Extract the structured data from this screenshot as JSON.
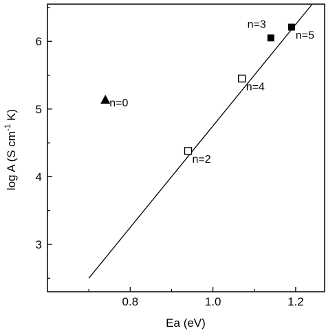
{
  "chart_data": {
    "type": "scatter",
    "title": "",
    "xlabel": "Ea (eV)",
    "ylabel": "log A (S cm⁻¹ K)",
    "ylabel_parts": {
      "pre": "log A (S cm",
      "sup": "-1",
      "post": " K)"
    },
    "xlim": [
      0.6,
      1.27
    ],
    "ylim": [
      2.3,
      6.55
    ],
    "x_ticks": [
      0.8,
      1.0,
      1.2
    ],
    "x_tick_labels": [
      "0.8",
      "1.0",
      "1.2"
    ],
    "y_ticks": [
      3,
      4,
      5,
      6
    ],
    "y_tick_labels": [
      "3",
      "4",
      "5",
      "6"
    ],
    "grid": false,
    "points": [
      {
        "label": "n=0",
        "x": 0.74,
        "y": 5.14,
        "marker": "filled-triangle"
      },
      {
        "label": "n=2",
        "x": 0.94,
        "y": 4.38,
        "marker": "open-square"
      },
      {
        "label": "n=4",
        "x": 1.07,
        "y": 5.45,
        "marker": "open-square"
      },
      {
        "label": "n=3",
        "x": 1.14,
        "y": 6.05,
        "marker": "filled-square"
      },
      {
        "label": "n=5",
        "x": 1.19,
        "y": 6.21,
        "marker": "filled-square"
      }
    ],
    "fit_line": {
      "x": [
        0.7,
        1.24
      ],
      "y": [
        2.5,
        6.55
      ]
    }
  }
}
